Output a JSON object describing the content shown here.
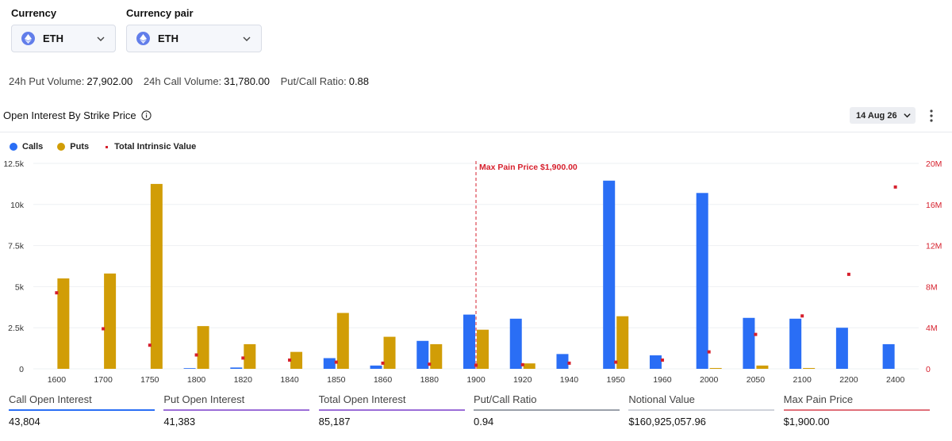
{
  "filters": {
    "currency_label": "Currency",
    "currency_value": "ETH",
    "pair_label": "Currency pair",
    "pair_value": "ETH"
  },
  "volume": {
    "put_label": "24h Put Volume:",
    "put_value": "27,902.00",
    "call_label": "24h Call Volume:",
    "call_value": "31,780.00",
    "ratio_label": "Put/Call Ratio:",
    "ratio_value": "0.88"
  },
  "section": {
    "title": "Open Interest By Strike Price",
    "date": "14 Aug 26"
  },
  "legend": {
    "calls": "Calls",
    "puts": "Puts",
    "intrinsic": "Total Intrinsic Value"
  },
  "colors": {
    "calls": "#2a6ef5",
    "puts": "#d19d06",
    "intrinsic": "#d61f2c",
    "max_pain": "#d61f2c"
  },
  "chart_data": {
    "type": "bar",
    "categories": [
      "1600",
      "1700",
      "1750",
      "1800",
      "1820",
      "1840",
      "1850",
      "1860",
      "1880",
      "1900",
      "1920",
      "1940",
      "1950",
      "1960",
      "2000",
      "2050",
      "2100",
      "2200",
      "2400"
    ],
    "series": [
      {
        "name": "Calls",
        "values": [
          0,
          0,
          0,
          40,
          80,
          0,
          650,
          200,
          1700,
          3300,
          3050,
          900,
          11450,
          820,
          10700,
          3100,
          3050,
          2500,
          1500
        ]
      },
      {
        "name": "Puts",
        "values": [
          5500,
          5800,
          11250,
          2600,
          1500,
          1030,
          3400,
          1950,
          1500,
          2380,
          330,
          0,
          3200,
          0,
          50,
          200,
          50,
          0,
          0
        ]
      },
      {
        "name": "Total Intrinsic Value",
        "values": [
          7400000,
          3900000,
          2300000,
          1350000,
          1050000,
          850000,
          650000,
          550000,
          450000,
          350000,
          400000,
          550000,
          650000,
          850000,
          1650000,
          3350000,
          5150000,
          9200000,
          17700000
        ]
      }
    ],
    "y_left": {
      "ticks": [
        "0",
        "2.5k",
        "5k",
        "7.5k",
        "10k",
        "12.5k"
      ],
      "ylim": [
        0,
        12500
      ]
    },
    "y_right": {
      "ticks": [
        "0",
        "4M",
        "8M",
        "12M",
        "16M",
        "20M"
      ],
      "ylim": [
        0,
        20000000
      ]
    },
    "max_pain": {
      "strike": "1900",
      "label": "Max Pain Price $1,900.00"
    }
  },
  "metrics": [
    {
      "label": "Call Open Interest",
      "value": "43,804",
      "color": "#2a6ef5"
    },
    {
      "label": "Put Open Interest",
      "value": "41,383",
      "color": "#9b6dd7"
    },
    {
      "label": "Total Open Interest",
      "value": "85,187",
      "color": "#9b6dd7"
    },
    {
      "label": "Put/Call Ratio",
      "value": "0.94",
      "color": "#9aa0aa"
    },
    {
      "label": "Notional Value",
      "value": "$160,925,057.96",
      "color": "#cfd3da"
    },
    {
      "label": "Max Pain Price",
      "value": "$1,900.00",
      "color": "#e0707a"
    }
  ]
}
